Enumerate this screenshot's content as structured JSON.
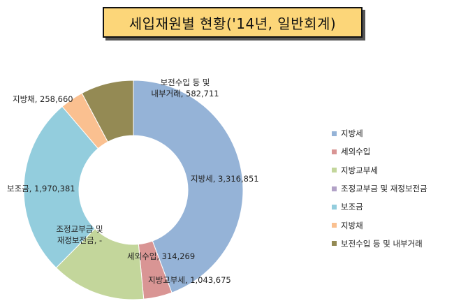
{
  "chart_data": {
    "type": "pie",
    "title": "세입재원별 현황('14년, 일반회계)",
    "slices": [
      {
        "name": "지방세",
        "value": 3316851,
        "label_text": "지방세, 3,316,851",
        "color": "#95b3d7"
      },
      {
        "name": "세외수입",
        "value": 314269,
        "label_text": "세외수입, 314,269",
        "color": "#d99594"
      },
      {
        "name": "지방교부세",
        "value": 1043675,
        "label_text": "지방교부세, 1,043,675",
        "color": "#c3d69b"
      },
      {
        "name": "조정교부금 및 재정보전금",
        "value": 0,
        "label_line1": "조정교부금 및",
        "label_line2": "재정보전금, -",
        "color": "#b2a2c7"
      },
      {
        "name": "보조금",
        "value": 1970381,
        "label_text": "보조금, 1,970,381",
        "color": "#93cddd"
      },
      {
        "name": "지방채",
        "value": 258660,
        "label_text": "지방채, 258,660",
        "color": "#fac090"
      },
      {
        "name": "보전수입 등 및 내부거래",
        "value": 582711,
        "label_line1": "보전수입 등 및",
        "label_line2": "내부거래, 582,711",
        "color": "#948a54"
      }
    ],
    "legend_position": "right"
  }
}
